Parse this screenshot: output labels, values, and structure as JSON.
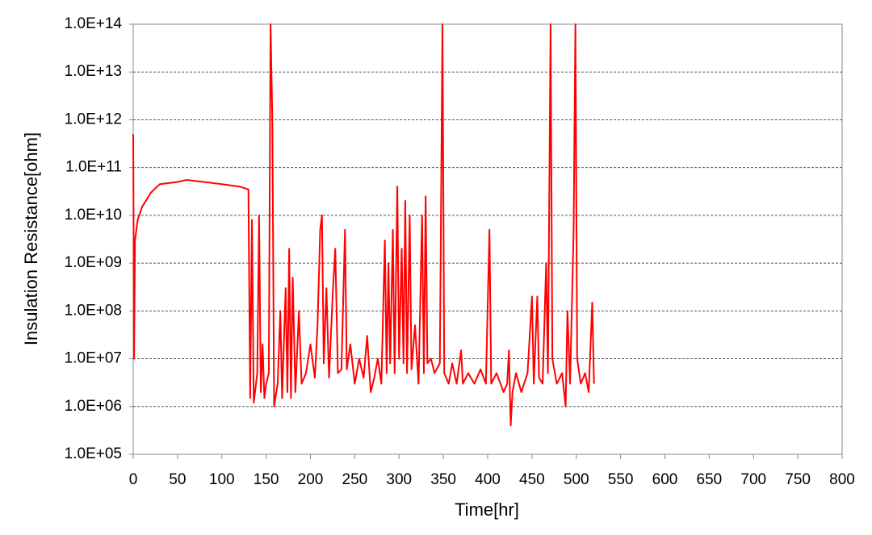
{
  "chart_data": {
    "type": "line",
    "xlabel": "Time[hr]",
    "ylabel": "Insulation Resistance[ohm]",
    "log_y": true,
    "grid": true,
    "color": "#ff0000",
    "xlim": [
      0,
      800
    ],
    "xticks": [
      0,
      50,
      100,
      150,
      200,
      250,
      300,
      350,
      400,
      450,
      500,
      550,
      600,
      650,
      700,
      750,
      800
    ],
    "ylim": [
      100000,
      100000000000000
    ],
    "yticks": [
      {
        "value": 100000,
        "label": "1.0E+05"
      },
      {
        "value": 1000000,
        "label": "1.0E+06"
      },
      {
        "value": 10000000,
        "label": "1.0E+07"
      },
      {
        "value": 100000000,
        "label": "1.0E+08"
      },
      {
        "value": 1000000000,
        "label": "1.0E+09"
      },
      {
        "value": 10000000000,
        "label": "1.0E+10"
      },
      {
        "value": 100000000000,
        "label": "1.0E+11"
      },
      {
        "value": 1000000000000,
        "label": "1.0E+12"
      },
      {
        "value": 10000000000000,
        "label": "1.0E+13"
      },
      {
        "value": 100000000000000,
        "label": "1.0E+14"
      }
    ],
    "x": [
      0,
      1,
      2,
      5,
      10,
      20,
      30,
      50,
      60,
      80,
      100,
      120,
      130,
      132,
      134,
      136,
      140,
      142,
      144,
      146,
      148,
      150,
      153,
      155,
      157,
      159,
      163,
      166,
      168,
      172,
      174,
      176,
      178,
      180,
      183,
      187,
      190,
      195,
      200,
      205,
      208,
      211,
      213,
      215,
      218,
      221,
      225,
      228,
      231,
      235,
      239,
      241,
      245,
      250,
      255,
      260,
      264,
      268,
      272,
      276,
      280,
      284,
      286,
      288,
      290,
      293,
      295,
      298,
      300,
      303,
      305,
      307,
      309,
      312,
      314,
      318,
      322,
      326,
      328,
      330,
      332,
      336,
      340,
      346,
      349,
      351,
      356,
      360,
      365,
      370,
      372,
      378,
      385,
      392,
      398,
      402,
      404,
      410,
      418,
      422,
      424,
      426,
      428,
      432,
      438,
      445,
      450,
      452,
      456,
      458,
      462,
      466,
      468,
      471,
      473,
      478,
      484,
      488,
      490,
      493,
      497,
      499,
      501,
      505,
      510,
      514,
      518,
      520
    ],
    "values": [
      500000000000.0,
      10000000.0,
      3000000000.0,
      8000000000.0,
      15000000000.0,
      30000000000.0,
      45000000000.0,
      50000000000.0,
      55000000000.0,
      50000000000.0,
      45000000000.0,
      40000000000.0,
      35000000000.0,
      1500000.0,
      8000000000.0,
      1200000.0,
      5000000.0,
      10000000000.0,
      2000000.0,
      20000000.0,
      1500000.0,
      3000000.0,
      5000000.0,
      100000000000000.0,
      1000000000000.0,
      1000000.0,
      3000000.0,
      100000000.0,
      1500000.0,
      300000000.0,
      2000000.0,
      2000000000.0,
      1500000.0,
      500000000.0,
      2000000.0,
      100000000.0,
      3000000.0,
      5000000.0,
      20000000.0,
      4000000.0,
      50000000.0,
      5000000000.0,
      10000000000.0,
      8000000.0,
      300000000.0,
      4000000.0,
      200000000.0,
      2000000000.0,
      5000000.0,
      6000000.0,
      5000000000.0,
      6000000.0,
      20000000.0,
      3000000.0,
      10000000.0,
      4000000.0,
      30000000.0,
      2000000.0,
      4000000.0,
      10000000.0,
      3000000.0,
      3000000000.0,
      5000000.0,
      1000000000.0,
      8000000.0,
      5000000000.0,
      5000000.0,
      40000000000.0,
      10000000.0,
      2000000000.0,
      8000000.0,
      20000000000.0,
      5000000.0,
      10000000000.0,
      6000000.0,
      50000000.0,
      3000000.0,
      10000000000.0,
      5000000.0,
      25000000000.0,
      8000000.0,
      10000000.0,
      5000000.0,
      8000000.0,
      100000000000000.0,
      5000000.0,
      3000000.0,
      8000000.0,
      3000000.0,
      15000000.0,
      3000000.0,
      5000000.0,
      3000000.0,
      6000000.0,
      3000000.0,
      5000000000.0,
      3000000.0,
      5000000.0,
      2000000.0,
      3000000.0,
      15000000.0,
      400000.0,
      2000000.0,
      5000000.0,
      2000000.0,
      5000000.0,
      200000000.0,
      3000000.0,
      200000000.0,
      4000000.0,
      3000000.0,
      1000000000.0,
      5000000.0,
      100000000000000.0,
      10000000.0,
      3000000.0,
      5000000.0,
      1000000.0,
      100000000.0,
      3000000.0,
      5000000000.0,
      100000000000000.0,
      10000000.0,
      3000000.0,
      5000000.0,
      2000000.0,
      150000000.0,
      3000000.0
    ]
  }
}
